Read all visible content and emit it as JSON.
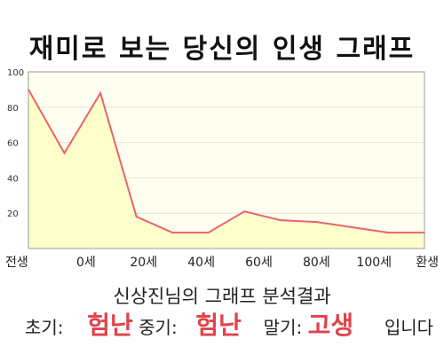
{
  "title": "재미로 보는 당신의 인생 그래프",
  "chart_data": {
    "type": "area",
    "x": [
      0,
      1,
      2,
      3,
      4,
      5,
      6,
      7,
      8,
      9,
      10,
      11
    ],
    "x_tick_labels": [
      "전생",
      "0세",
      "20세",
      "40세",
      "60세",
      "80세",
      "100세",
      "환생"
    ],
    "x_tick_positions": [
      0,
      1.6,
      3.2,
      4.8,
      6.4,
      8.0,
      9.6,
      11
    ],
    "values": [
      90,
      54,
      88,
      18,
      9,
      9,
      21,
      16,
      15,
      12,
      9,
      9
    ],
    "ylim": [
      0,
      100
    ],
    "y_ticks": [
      20,
      40,
      60,
      80,
      100
    ],
    "grid": true,
    "line_color": "#e8636c",
    "fill_color": "#ffffcc",
    "background_color": "#fffff0"
  },
  "result": {
    "title": "신상진님의 그래프 분석결과",
    "early_label": "초기:",
    "early_value": "험난",
    "middle_label": "중기:",
    "middle_value": "험난",
    "late_label": "말기:",
    "late_value": "고생",
    "suffix": "입니다",
    "accent_color": "#e0434b"
  }
}
